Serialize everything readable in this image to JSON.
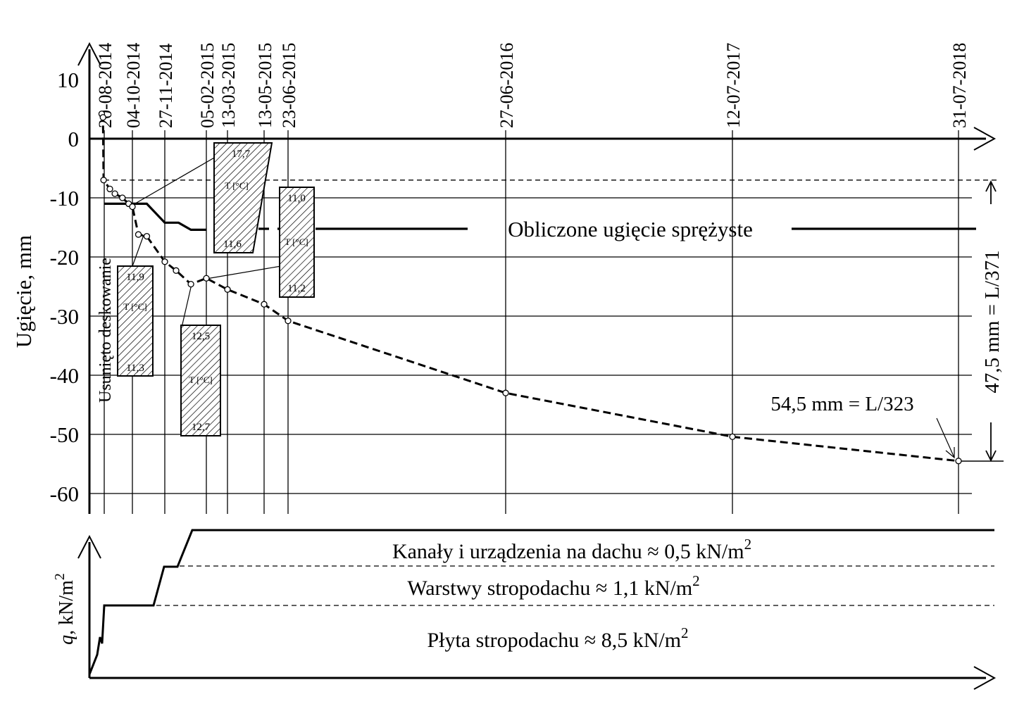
{
  "chart_data": {
    "type": "line",
    "ylabel": "Ugięcie, mm",
    "ylim": [
      -62,
      15
    ],
    "yticks": [
      10,
      0,
      -10,
      -20,
      -30,
      -40,
      -50,
      -60
    ],
    "date_ticks": [
      "20-08-2014",
      "04-10-2014",
      "27-11-2014",
      "05-02-2015",
      "13-03-2015",
      "13-05-2015",
      "23-06-2015",
      "27-06-2016",
      "12-07-2017",
      "31-07-2018"
    ],
    "grid": true,
    "series": [
      {
        "name": "",
        "style": "dashed-with-markers",
        "points": [
          {
            "x": "2014-08-16",
            "y": 4.2
          },
          {
            "x": "2014-08-18",
            "y": 3.6
          },
          {
            "x": "2014-08-19",
            "y": -7.0
          },
          {
            "x": "2014-08-29",
            "y": -8.5
          },
          {
            "x": "2014-09-06",
            "y": -9.3
          },
          {
            "x": "2014-09-18",
            "y": -10.0
          },
          {
            "x": "2014-09-28",
            "y": -11.0
          },
          {
            "x": "2014-10-04",
            "y": -11.5
          },
          {
            "x": "2014-10-14",
            "y": -16.2
          },
          {
            "x": "2014-10-28",
            "y": -16.5
          },
          {
            "x": "2014-11-27",
            "y": -20.8
          },
          {
            "x": "2014-12-16",
            "y": -22.3
          },
          {
            "x": "2015-01-10",
            "y": -24.6
          },
          {
            "x": "2015-02-05",
            "y": -23.6
          },
          {
            "x": "2015-03-13",
            "y": -25.5
          },
          {
            "x": "2015-05-13",
            "y": -28.0
          },
          {
            "x": "2015-06-23",
            "y": -30.8
          },
          {
            "x": "2016-06-27",
            "y": -43.0
          },
          {
            "x": "2017-07-12",
            "y": -50.4
          },
          {
            "x": "2018-07-31",
            "y": -54.5
          }
        ]
      },
      {
        "name": "Obliczone ugięcie sprężyste",
        "style": "solid-step",
        "points": [
          {
            "x": "2014-08-20",
            "y": -11.0
          },
          {
            "x": "2014-10-28",
            "y": -11.0
          },
          {
            "x": "2014-11-27",
            "y": -14.2
          },
          {
            "x": "2014-12-20",
            "y": -14.2
          },
          {
            "x": "2015-01-10",
            "y": -15.4
          },
          {
            "x": "2015-02-05",
            "y": -15.4
          }
        ]
      }
    ],
    "temperature_boxes": [
      {
        "label": "T [°C]",
        "top": "11,9",
        "bottom": "11,3"
      },
      {
        "label": "T [°C]",
        "top": "12,5",
        "bottom": "12,7"
      },
      {
        "label": "T [°C]",
        "top": "17,7",
        "bottom": "11,6"
      },
      {
        "label": "T [°C]",
        "top": "11,0",
        "bottom": "11,2"
      }
    ],
    "annotations": {
      "formwork": "Usunięto deskowanie",
      "elastic_label": "Obliczone ugięcie sprężyste",
      "final": "54,5 mm = L/323",
      "dimension": "47,5 mm = L/371"
    },
    "load_panel": {
      "ylabel_var": "q",
      "ylabel_unit": ", kN/m",
      "ylabel_sup": "2",
      "layers": [
        {
          "text": "Kanały i urządzenia na dachu ≈ 0,5 kN/m",
          "sup": "2"
        },
        {
          "text": "Warstwy stropodachu ≈ 1,1 kN/m",
          "sup": "2"
        },
        {
          "text": "Płyta stropodachu ≈ 8,5 kN/m",
          "sup": "2"
        }
      ]
    }
  }
}
